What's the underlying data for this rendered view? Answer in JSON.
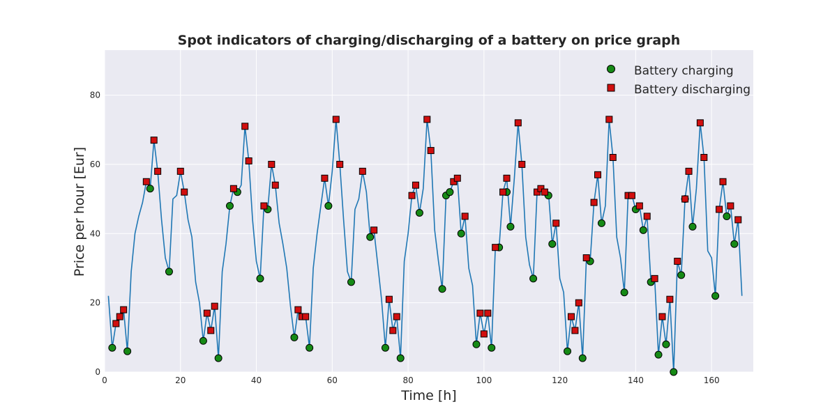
{
  "chart_data": {
    "type": "line",
    "title": "Spot indicators of charging/discharging of a battery on price graph",
    "xlabel": "Time [h]",
    "ylabel": "Price per hour [Eur]",
    "xlim": [
      0,
      171
    ],
    "ylim": [
      0,
      93
    ],
    "xticks": [
      0,
      20,
      40,
      60,
      80,
      100,
      120,
      140,
      160
    ],
    "yticks": [
      0,
      20,
      40,
      60,
      80
    ],
    "grid": true,
    "legend_position": "top-right",
    "price_series": {
      "name": "Price",
      "color": "#1f77b4",
      "x": [
        1,
        2,
        3,
        4,
        5,
        6,
        7,
        8,
        9,
        10,
        11,
        12,
        13,
        14,
        15,
        16,
        17,
        18,
        19,
        20,
        21,
        22,
        23,
        24,
        25,
        26,
        27,
        28,
        29,
        30,
        31,
        32,
        33,
        34,
        35,
        36,
        37,
        38,
        39,
        40,
        41,
        42,
        43,
        44,
        45,
        46,
        47,
        48,
        49,
        50,
        51,
        52,
        53,
        54,
        55,
        56,
        57,
        58,
        59,
        60,
        61,
        62,
        63,
        64,
        65,
        66,
        67,
        68,
        69,
        70,
        71,
        72,
        73,
        74,
        75,
        76,
        77,
        78,
        79,
        80,
        81,
        82,
        83,
        84,
        85,
        86,
        87,
        88,
        89,
        90,
        91,
        92,
        93,
        94,
        95,
        96,
        97,
        98,
        99,
        100,
        101,
        102,
        103,
        104,
        105,
        106,
        107,
        108,
        109,
        110,
        111,
        112,
        113,
        114,
        115,
        116,
        117,
        118,
        119,
        120,
        121,
        122,
        123,
        124,
        125,
        126,
        127,
        128,
        129,
        130,
        131,
        132,
        133,
        134,
        135,
        136,
        137,
        138,
        139,
        140,
        141,
        142,
        143,
        144,
        145,
        146,
        147,
        148,
        149,
        150,
        151,
        152,
        153,
        154,
        155,
        156,
        157,
        158,
        159,
        160,
        161,
        162,
        163,
        164,
        165,
        166,
        167,
        168
      ],
      "y": [
        22,
        7,
        14,
        16,
        18,
        6,
        29,
        40,
        45,
        49,
        55,
        53,
        67,
        58,
        44,
        33,
        29,
        50,
        51,
        58,
        52,
        44,
        39,
        26,
        20,
        9,
        17,
        12,
        19,
        4,
        29,
        37,
        48,
        53,
        52,
        54,
        71,
        61,
        44,
        32,
        27,
        48,
        47,
        60,
        54,
        43,
        37,
        30,
        19,
        10,
        18,
        16,
        16,
        7,
        30,
        40,
        48,
        56,
        48,
        58,
        73,
        60,
        44,
        29,
        26,
        47,
        50,
        58,
        52,
        39,
        41,
        31,
        21,
        7,
        21,
        12,
        16,
        4,
        32,
        40,
        51,
        54,
        46,
        53,
        73,
        64,
        41,
        32,
        24,
        51,
        52,
        55,
        56,
        40,
        45,
        30,
        25,
        8,
        17,
        11,
        17,
        7,
        36,
        36,
        52,
        56,
        42,
        56,
        72,
        60,
        39,
        31,
        27,
        52,
        53,
        51,
        52,
        37,
        43,
        27,
        23,
        6,
        16,
        12,
        20,
        4,
        33,
        32,
        49,
        57,
        43,
        48,
        73,
        62,
        39,
        33,
        23,
        51,
        51,
        47,
        48,
        41,
        45,
        26,
        27,
        5,
        16,
        8,
        21,
        0,
        32,
        28,
        50,
        58,
        42,
        53,
        72,
        62,
        35,
        33,
        22,
        47,
        55,
        45,
        48,
        37,
        44,
        22
      ]
    },
    "series": [
      {
        "name": "Battery charging",
        "marker": "circle",
        "color": "#168a16",
        "x": [
          2,
          6,
          12,
          17,
          26,
          30,
          33,
          35,
          41,
          43,
          50,
          54,
          59,
          65,
          70,
          74,
          78,
          83,
          89,
          90,
          91,
          94,
          98,
          102,
          104,
          106,
          107,
          113,
          117,
          118,
          122,
          126,
          128,
          131,
          137,
          140,
          142,
          144,
          146,
          148,
          150,
          152,
          153,
          155,
          161,
          164,
          166
        ],
        "y": [
          7,
          6,
          53,
          29,
          9,
          4,
          48,
          52,
          27,
          47,
          10,
          7,
          48,
          26,
          39,
          7,
          4,
          46,
          24,
          51,
          52,
          40,
          8,
          7,
          36,
          52,
          42,
          27,
          51,
          37,
          6,
          4,
          32,
          43,
          23,
          47,
          41,
          26,
          5,
          8,
          0,
          28,
          50,
          42,
          22,
          45,
          37
        ]
      },
      {
        "name": "Battery discharging",
        "marker": "square",
        "color": "#d10f0f",
        "x": [
          3,
          4,
          5,
          11,
          13,
          14,
          20,
          21,
          27,
          28,
          29,
          34,
          37,
          38,
          42,
          44,
          45,
          51,
          52,
          53,
          58,
          61,
          62,
          68,
          71,
          75,
          76,
          77,
          81,
          82,
          85,
          86,
          92,
          93,
          95,
          99,
          100,
          101,
          103,
          105,
          106,
          109,
          110,
          114,
          115,
          116,
          119,
          123,
          124,
          125,
          127,
          129,
          130,
          133,
          134,
          138,
          139,
          141,
          143,
          145,
          147,
          149,
          151,
          153,
          154,
          157,
          158,
          162,
          163,
          165,
          167
        ],
        "y": [
          14,
          16,
          18,
          55,
          67,
          58,
          58,
          52,
          17,
          12,
          19,
          53,
          71,
          61,
          48,
          60,
          54,
          18,
          16,
          16,
          56,
          73,
          60,
          58,
          41,
          21,
          12,
          16,
          51,
          54,
          73,
          64,
          55,
          56,
          45,
          17,
          11,
          17,
          36,
          52,
          56,
          72,
          60,
          52,
          53,
          52,
          43,
          16,
          12,
          20,
          33,
          49,
          57,
          73,
          62,
          51,
          51,
          48,
          45,
          27,
          16,
          21,
          32,
          50,
          58,
          72,
          62,
          47,
          55,
          48,
          44
        ]
      }
    ]
  }
}
